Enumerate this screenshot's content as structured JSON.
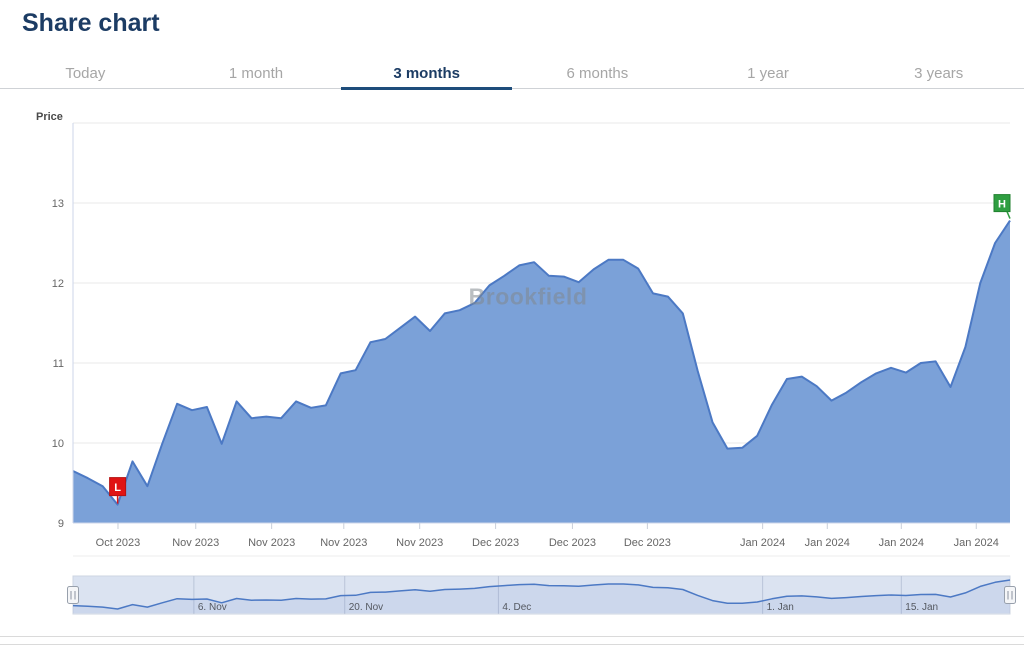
{
  "page": {
    "title": "Share chart"
  },
  "tabs": [
    {
      "label": "Today",
      "active": false
    },
    {
      "label": "1 month",
      "active": false
    },
    {
      "label": "3 months",
      "active": true
    },
    {
      "label": "6 months",
      "active": false
    },
    {
      "label": "1 year",
      "active": false
    },
    {
      "label": "3 years",
      "active": false
    }
  ],
  "chart": {
    "y_axis_title": "Price",
    "menu_icon": "hamburger-menu"
  },
  "chart_data": {
    "type": "area",
    "title": "Share chart",
    "ylabel": "Price",
    "xlabel": "",
    "ylim": [
      9,
      14
    ],
    "yticks": [
      9,
      10,
      11,
      12,
      13
    ],
    "grid": true,
    "legend": false,
    "watermark": "Brookfield",
    "series": [
      {
        "name": "Brookfield share price",
        "values": [
          9.65,
          9.56,
          9.46,
          9.23,
          9.77,
          9.46,
          9.99,
          10.49,
          10.41,
          10.45,
          9.99,
          10.52,
          10.31,
          10.33,
          10.31,
          10.52,
          10.44,
          10.47,
          10.87,
          10.91,
          11.26,
          11.3,
          11.44,
          11.58,
          11.4,
          11.62,
          11.66,
          11.75,
          11.97,
          12.09,
          12.22,
          12.26,
          12.09,
          12.08,
          12.01,
          12.17,
          12.29,
          12.29,
          12.18,
          11.87,
          11.83,
          11.62,
          10.9,
          10.26,
          9.93,
          9.94,
          10.09,
          10.48,
          10.8,
          10.83,
          10.71,
          10.53,
          10.63,
          10.76,
          10.87,
          10.94,
          10.88,
          11.0,
          11.02,
          10.7,
          11.2,
          12.0,
          12.5,
          12.78
        ]
      }
    ],
    "x_ticks": [
      {
        "label": "Oct 2023",
        "pos": 0.048
      },
      {
        "label": "Nov 2023",
        "pos": 0.131
      },
      {
        "label": "Nov 2023",
        "pos": 0.212
      },
      {
        "label": "Nov 2023",
        "pos": 0.289
      },
      {
        "label": "Nov 2023",
        "pos": 0.37
      },
      {
        "label": "Dec 2023",
        "pos": 0.451
      },
      {
        "label": "Dec 2023",
        "pos": 0.533
      },
      {
        "label": "Dec 2023",
        "pos": 0.613
      },
      {
        "label": "Jan 2024",
        "pos": 0.736
      },
      {
        "label": "Jan 2024",
        "pos": 0.805
      },
      {
        "label": "Jan 2024",
        "pos": 0.884
      },
      {
        "label": "Jan 2024",
        "pos": 0.964
      }
    ],
    "flags": [
      {
        "label": "L",
        "type": "low",
        "index": 3,
        "value": 9.23,
        "color": "#e01414"
      },
      {
        "label": "H",
        "type": "high",
        "index": 63,
        "value": 12.78,
        "color": "#2f9e41"
      }
    ],
    "navigator": {
      "ticks": [
        {
          "label": "6. Nov",
          "pos": 0.129
        },
        {
          "label": "20. Nov",
          "pos": 0.29
        },
        {
          "label": "4. Dec",
          "pos": 0.454
        },
        {
          "label": "1. Jan",
          "pos": 0.736
        },
        {
          "label": "15. Jan",
          "pos": 0.884
        }
      ]
    },
    "colors": {
      "area": "#7ba1d8",
      "line": "#4c79c4",
      "navigator_bg": "#dbe3f1",
      "navigator_grid": "#bac4d8",
      "flag_low": "#e01414",
      "flag_high": "#2f9e41",
      "accent": "#1c3c64",
      "tab_underline": "#1e4d7b"
    }
  }
}
